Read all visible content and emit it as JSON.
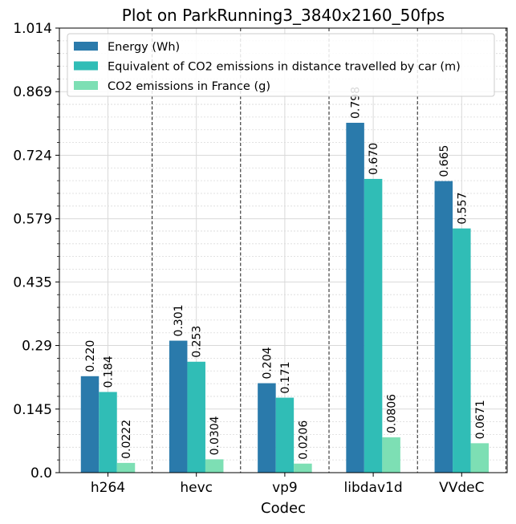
{
  "chart_data": {
    "type": "bar",
    "title": "Plot on ParkRunning3_3840x2160_50fps",
    "xlabel": "Codec",
    "ylabel": "",
    "categories": [
      "h264",
      "hevc",
      "vp9",
      "libdav1d",
      "VVdeC"
    ],
    "series": [
      {
        "name": "Energy (Wh)",
        "color": "#2a7aab",
        "values": [
          0.22,
          0.301,
          0.204,
          0.798,
          0.665
        ],
        "labels": [
          "0.220",
          "0.301",
          "0.204",
          "0.798",
          "0.665"
        ]
      },
      {
        "name": "Equivalent of CO2 emissions in distance travelled by car (m)",
        "color": "#30bdb6",
        "values": [
          0.184,
          0.253,
          0.171,
          0.67,
          0.557
        ],
        "labels": [
          "0.184",
          "0.253",
          "0.171",
          "0.670",
          "0.557"
        ]
      },
      {
        "name": "CO2 emissions in France (g)",
        "color": "#7ddfb4",
        "values": [
          0.0222,
          0.0304,
          0.0206,
          0.0806,
          0.0671
        ],
        "labels": [
          "0.0222",
          "0.0304",
          "0.0206",
          "0.0806",
          "0.0671"
        ]
      }
    ],
    "ylim": [
      0,
      1.014
    ],
    "yticks": [
      0.0,
      0.145,
      0.29,
      0.435,
      0.579,
      0.724,
      0.869,
      1.014
    ],
    "ytick_labels": [
      "0.0",
      "0.145",
      "0.29",
      "0.435",
      "0.579",
      "0.724",
      "0.869",
      "1.014"
    ],
    "grid": true,
    "legend_position": "top-left"
  }
}
